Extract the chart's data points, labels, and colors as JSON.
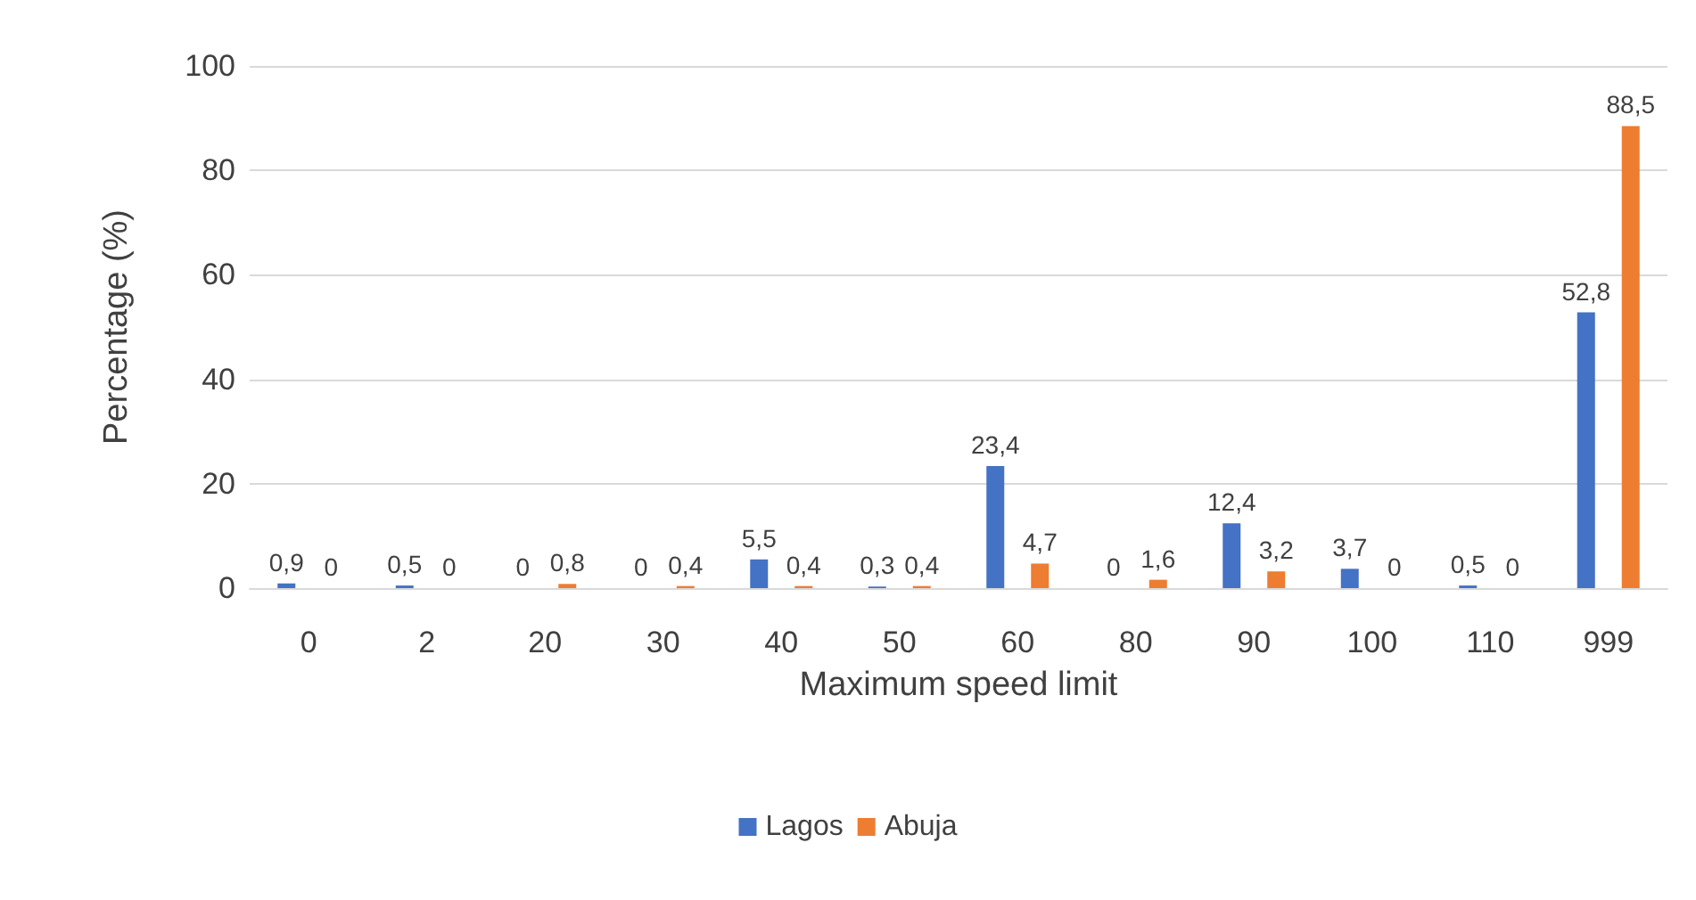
{
  "chart_data": {
    "type": "bar",
    "xlabel": "Maximum speed limit",
    "ylabel": "Percentage (%)",
    "categories": [
      "0",
      "2",
      "20",
      "30",
      "40",
      "50",
      "60",
      "80",
      "90",
      "100",
      "110",
      "999"
    ],
    "series": [
      {
        "name": "Lagos",
        "color": "#4472c4",
        "values": [
          0.9,
          0.5,
          0,
          0,
          5.5,
          0.3,
          23.4,
          0,
          12.4,
          3.7,
          0.5,
          52.8
        ],
        "value_labels": [
          "0,9",
          "0,5",
          "0",
          "0",
          "5,5",
          "0,3",
          "23,4",
          "0",
          "12,4",
          "3,7",
          "0,5",
          "52,8"
        ]
      },
      {
        "name": "Abuja",
        "color": "#ed7d31",
        "values": [
          0,
          0,
          0.8,
          0.4,
          0.4,
          0.4,
          4.7,
          1.6,
          3.2,
          0,
          0,
          88.5
        ],
        "value_labels": [
          "0",
          "0",
          "0,8",
          "0,4",
          "0,4",
          "0,4",
          "4,7",
          "1,6",
          "3,2",
          "0",
          "0",
          "88,5"
        ]
      }
    ],
    "ylim": [
      0,
      100
    ],
    "yticks": [
      0,
      20,
      40,
      60,
      80,
      100
    ],
    "grid": "y",
    "legend": "bottom"
  }
}
